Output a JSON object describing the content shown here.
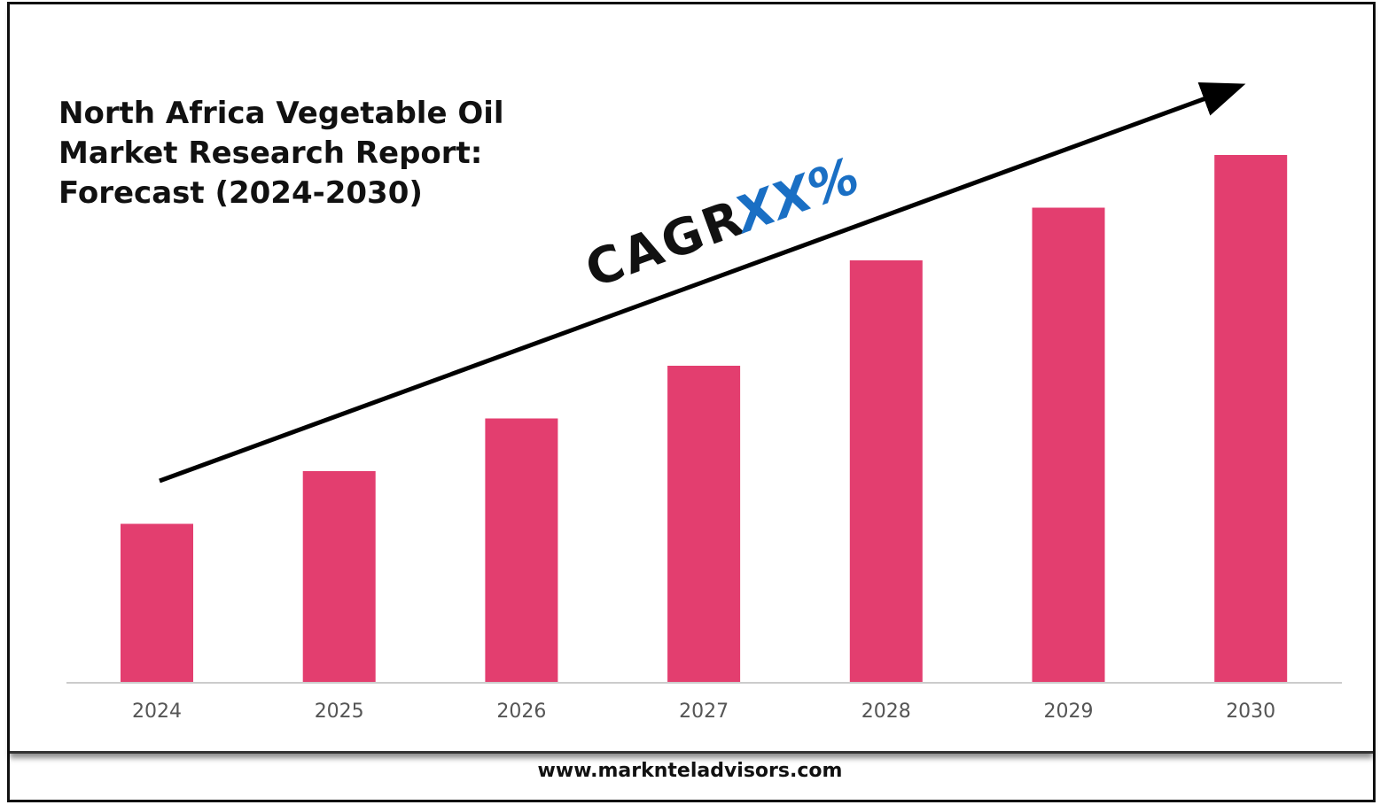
{
  "title": "North Africa Vegetable Oil\nMarket Research Report:\nForecast (2024-2030)",
  "footer": "www.marknteladvisors.com",
  "colors": {
    "bar": "#e33e6f",
    "cagr_value": "#1a6fc4",
    "text": "#111111"
  },
  "chart_data": {
    "type": "bar",
    "title": "North Africa Vegetable Oil Market Research Report: Forecast (2024-2030)",
    "categories": [
      "2024",
      "2025",
      "2026",
      "2027",
      "2028",
      "2029",
      "2030"
    ],
    "values": [
      30,
      40,
      50,
      60,
      80,
      90,
      100
    ],
    "xlabel": "",
    "ylabel": "",
    "ylim": [
      0,
      100
    ],
    "grid": false,
    "annotations": {
      "cagr_label": "CAGR",
      "cagr_value": "XX%"
    }
  }
}
